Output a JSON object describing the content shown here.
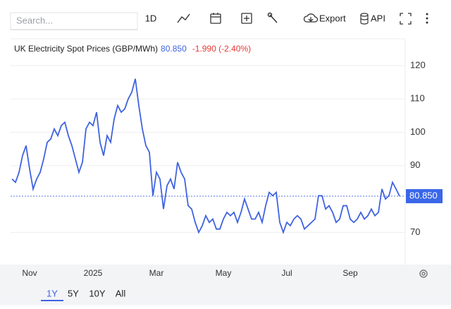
{
  "toolbar": {
    "search": "Search...",
    "interval": "1D",
    "export": "Export",
    "api": "API"
  },
  "ranges": [
    "1Y",
    "5Y",
    "10Y",
    "All"
  ],
  "chart_data": {
    "type": "line",
    "title": "UK Electricity Spot Prices (GBP/MWh)",
    "price": "80.850",
    "change": "-1.990 (-2.40%)",
    "categories": [
      null,
      null,
      null,
      null,
      null,
      "Nov",
      null,
      null,
      null,
      null,
      null,
      null,
      null,
      null,
      null,
      null,
      null,
      null,
      null,
      null,
      null,
      null,
      null,
      "2025",
      null,
      null,
      null,
      null,
      null,
      null,
      null,
      null,
      null,
      null,
      null,
      null,
      null,
      null,
      null,
      null,
      null,
      "Mar",
      null,
      null,
      null,
      null,
      null,
      null,
      null,
      null,
      null,
      null,
      null,
      null,
      null,
      null,
      null,
      null,
      null,
      null,
      "May",
      null,
      null,
      null,
      null,
      null,
      null,
      null,
      null,
      null,
      null,
      null,
      null,
      null,
      null,
      null,
      null,
      null,
      "Jul",
      null,
      null,
      null,
      null,
      null,
      null,
      null,
      null,
      null,
      null,
      null,
      null,
      null,
      null,
      null,
      null,
      null,
      "Sep",
      null,
      null,
      null,
      null,
      null,
      null,
      null,
      null,
      null,
      null,
      null,
      null,
      null,
      null
    ],
    "series": [
      {
        "name": "UK Electricity Spot Prices",
        "color": "#3f63e0",
        "values": [
          86,
          85,
          88,
          93,
          96,
          89,
          83,
          86,
          88,
          92,
          97,
          98,
          101,
          99,
          102,
          103,
          99,
          96,
          92,
          88,
          91,
          101,
          103,
          102,
          106,
          97,
          93,
          99,
          97,
          104,
          108,
          106,
          107,
          110,
          112,
          116,
          108,
          101,
          96,
          94,
          81,
          88,
          86,
          77,
          84,
          86,
          83,
          91,
          88,
          86,
          78,
          77,
          73,
          70,
          72,
          75,
          73,
          74,
          71,
          71,
          74,
          76,
          75,
          76,
          73,
          76,
          80,
          77,
          74,
          74,
          76,
          73,
          78,
          82,
          81,
          82,
          73,
          70,
          73,
          72,
          74,
          75,
          74,
          71,
          72,
          73,
          74,
          81,
          81,
          77,
          78,
          76,
          73,
          74,
          78,
          78,
          74,
          73,
          74,
          76,
          74,
          75,
          77,
          75,
          76,
          83,
          80,
          81,
          85,
          83,
          80.85
        ]
      }
    ],
    "ylim": [
      61,
      128
    ],
    "yticks": [
      70,
      90,
      100,
      110,
      120
    ],
    "grid": true,
    "last_value_color": "#3a66e8"
  }
}
